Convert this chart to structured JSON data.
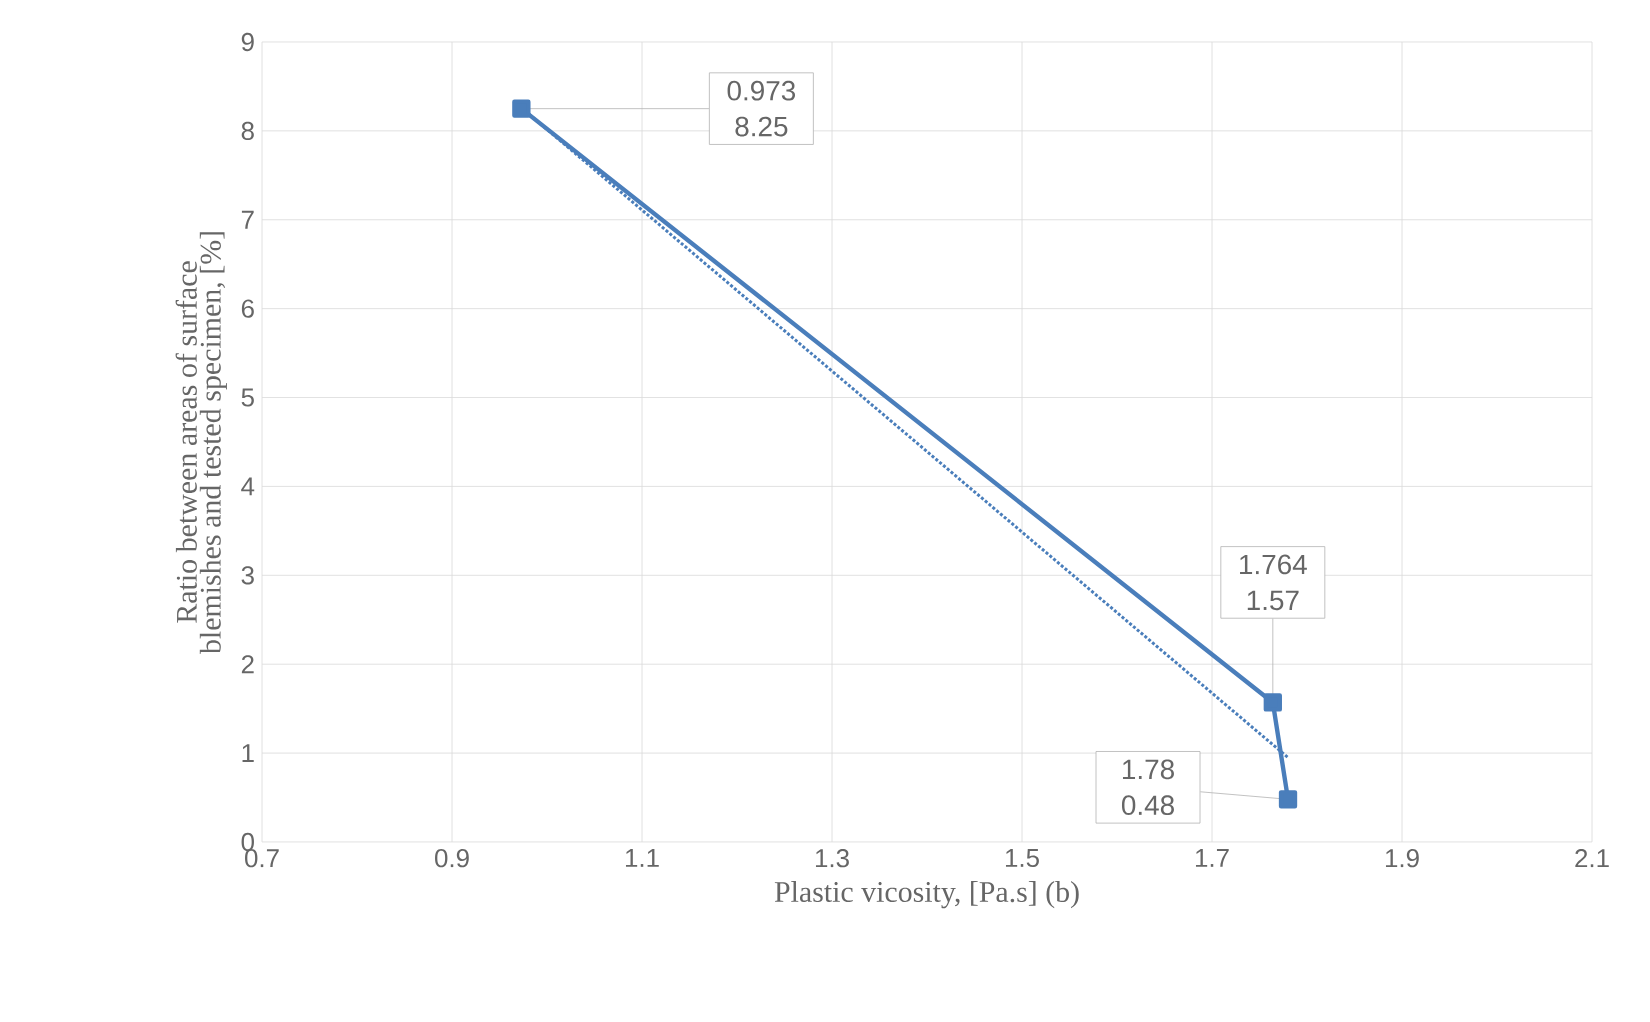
{
  "chart_data": {
    "type": "line",
    "xlabel": "Plastic vicosity, [Pa.s] (b)",
    "ylabel": "Ratio between areas of surface blemishes and tested specimen, [%]",
    "series": [
      {
        "color": "#4a7ebb",
        "x": [
          0.973,
          1.764,
          1.78
        ],
        "values": [
          8.25,
          1.57,
          0.48
        ]
      },
      {
        "type": "line",
        "color": "#4a7ebb",
        "x": [
          0.973,
          1.78
        ],
        "values": [
          8.26,
          0.95
        ],
        "marker": "none",
        "line_style": "dotted"
      }
    ],
    "annotations": [
      {
        "text": "0.973 8.25",
        "x": 0.973,
        "y": 8.25
      },
      {
        "text": "1.764 1.57",
        "x": 1.764,
        "y": 1.57
      },
      {
        "text": "1.78 0.48",
        "x": 1.78,
        "y": 0.48
      }
    ],
    "xlim": [
      0.7,
      2.1
    ],
    "xticks": [
      0.7,
      0.9,
      1.1,
      1.3,
      1.5,
      1.7,
      1.9,
      2.1
    ],
    "ylim": [
      0,
      9
    ],
    "yticks": [
      0,
      1,
      2,
      3,
      4,
      5,
      6,
      7,
      8,
      9
    ],
    "grid": true,
    "marker": "square",
    "line_style": "solid"
  }
}
